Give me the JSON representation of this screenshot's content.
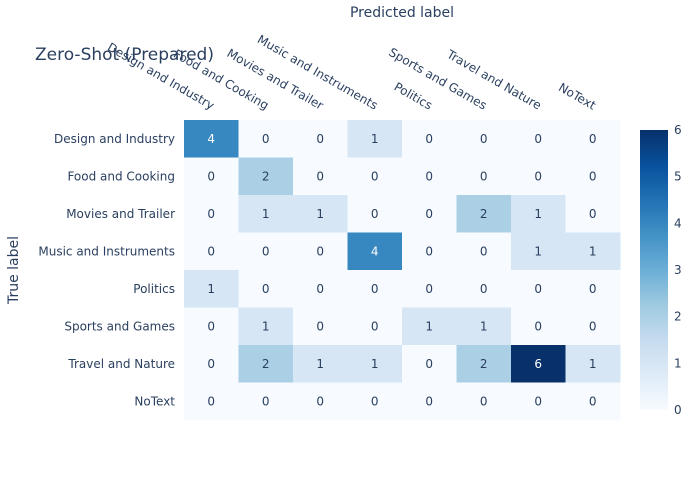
{
  "chart_data": {
    "type": "heatmap",
    "title": "Zero-Shot (Prepared)",
    "xlabel": "Predicted label",
    "ylabel": "True label",
    "x_categories": [
      "Design and Industry",
      "Food and Cooking",
      "Movies and Trailer",
      "Music and Instruments",
      "Politics",
      "Sports and Games",
      "Travel and Nature",
      "NoText"
    ],
    "y_categories": [
      "Design and Industry",
      "Food and Cooking",
      "Movies and Trailer",
      "Music and Instruments",
      "Politics",
      "Sports and Games",
      "Travel and Nature",
      "NoText"
    ],
    "values": [
      [
        4,
        0,
        0,
        1,
        0,
        0,
        0,
        0
      ],
      [
        0,
        2,
        0,
        0,
        0,
        0,
        0,
        0
      ],
      [
        0,
        1,
        1,
        0,
        0,
        2,
        1,
        0
      ],
      [
        0,
        0,
        0,
        4,
        0,
        0,
        1,
        1
      ],
      [
        1,
        0,
        0,
        0,
        0,
        0,
        0,
        0
      ],
      [
        0,
        1,
        0,
        0,
        1,
        1,
        0,
        0
      ],
      [
        0,
        2,
        1,
        1,
        0,
        2,
        6,
        1
      ],
      [
        0,
        0,
        0,
        0,
        0,
        0,
        0,
        0
      ]
    ],
    "zlim": [
      0,
      6
    ],
    "colorscale": "Blues",
    "colorbar_ticks": [
      0,
      1,
      2,
      3,
      4,
      5,
      6
    ],
    "grid": false
  }
}
